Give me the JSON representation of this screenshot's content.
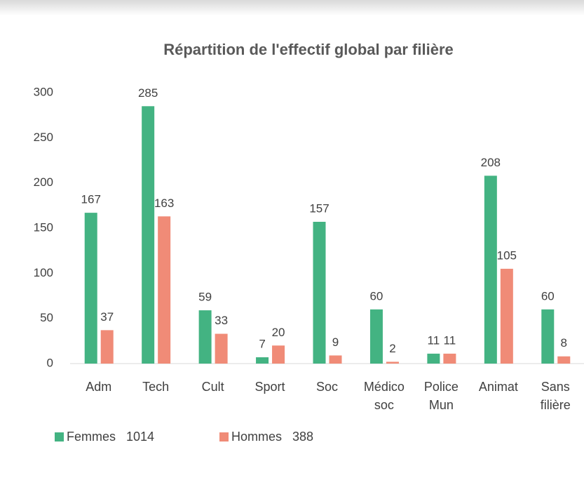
{
  "chart_data": {
    "type": "bar",
    "title": "Répartition de l'effectif global par filière",
    "categories": [
      "Adm",
      "Tech",
      "Cult",
      "Sport",
      "Soc",
      "Médico soc",
      "Police Mun",
      "Animat",
      "Sans filière"
    ],
    "series": [
      {
        "name": "Femmes   1014",
        "color": "#43b382",
        "values": [
          167,
          285,
          59,
          7,
          157,
          60,
          11,
          208,
          60
        ]
      },
      {
        "name": "Hommes   388",
        "color": "#f08b77",
        "values": [
          37,
          163,
          33,
          20,
          9,
          2,
          11,
          105,
          8
        ]
      }
    ],
    "ylim": [
      0,
      300
    ],
    "yticks": [
      0,
      50,
      100,
      150,
      200,
      250,
      300
    ],
    "grid": false,
    "legend": "bottom"
  }
}
